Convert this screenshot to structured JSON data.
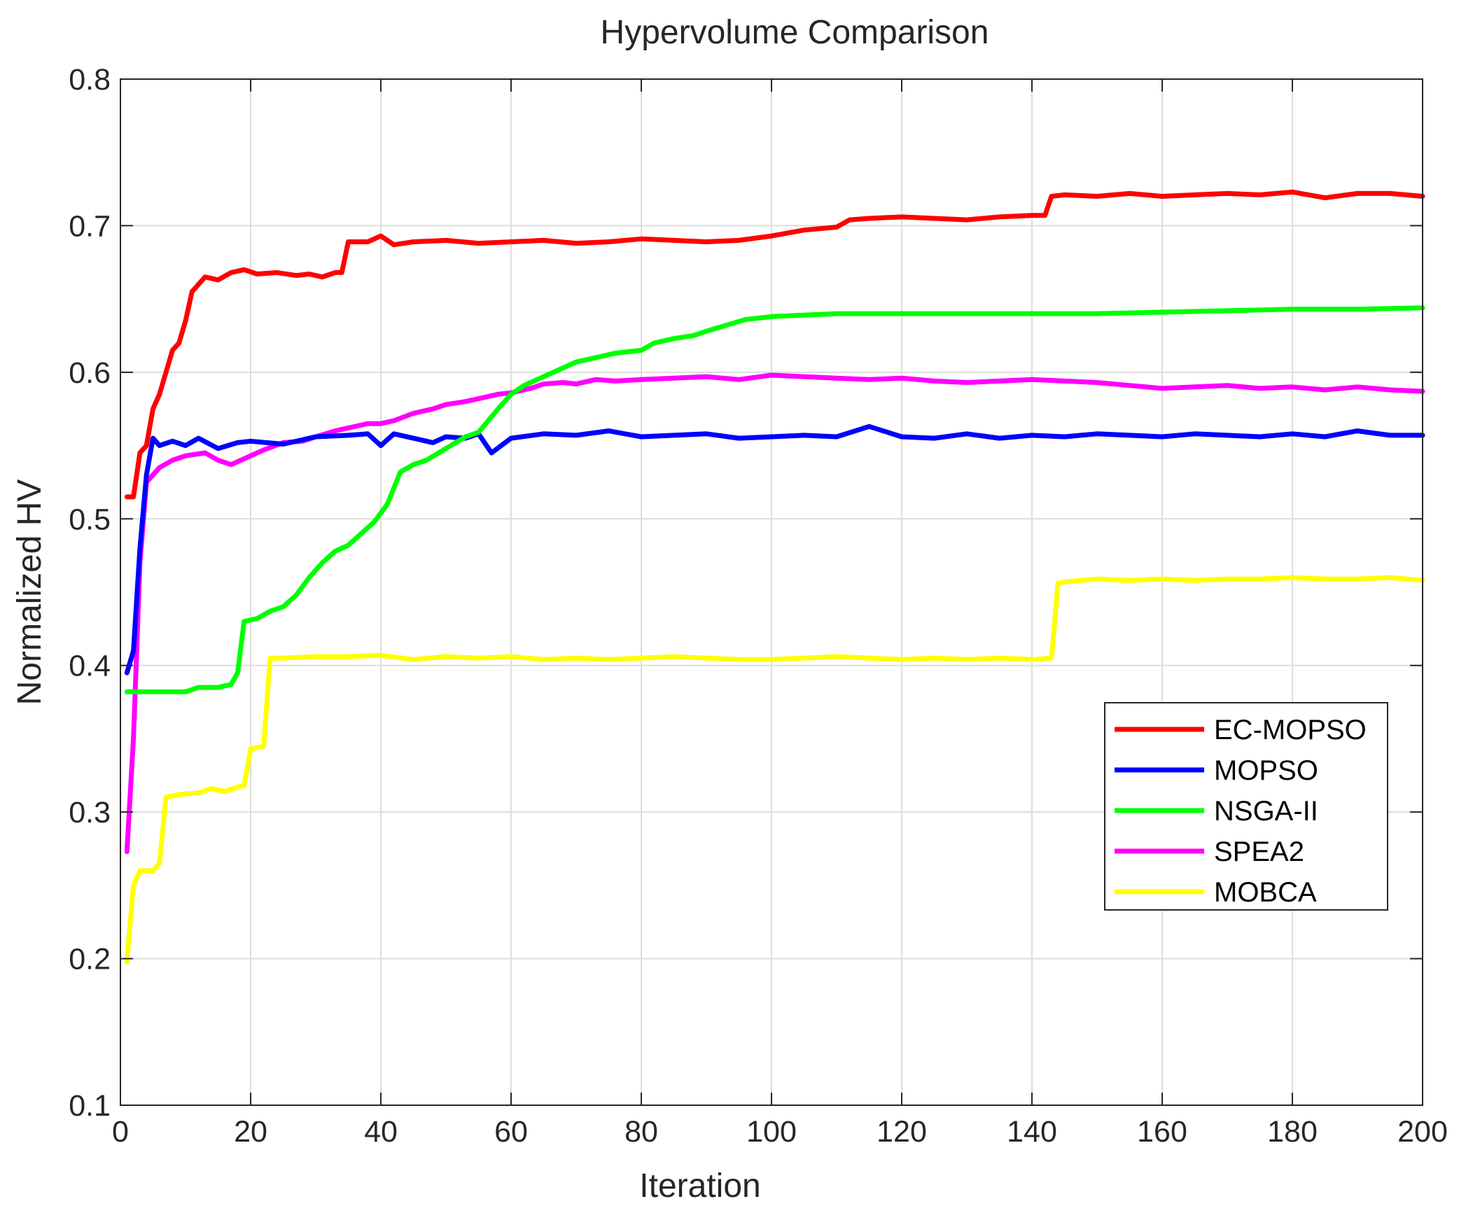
{
  "chart_data": {
    "type": "line",
    "title": "Hypervolume Comparison",
    "xlabel": "Iteration",
    "ylabel": "Normalized HV",
    "xlim": [
      0,
      200
    ],
    "ylim": [
      0.1,
      0.8
    ],
    "xticks": [
      0,
      20,
      40,
      60,
      80,
      100,
      120,
      140,
      160,
      180,
      200
    ],
    "yticks": [
      0.1,
      0.2,
      0.3,
      0.4,
      0.5,
      0.6,
      0.7,
      0.8
    ],
    "xtick_labels": [
      "0",
      "20",
      "40",
      "60",
      "80",
      "100",
      "120",
      "140",
      "160",
      "180",
      "200"
    ],
    "ytick_labels": [
      "0.1",
      "0.2",
      "0.3",
      "0.4",
      "0.5",
      "0.6",
      "0.7",
      "0.8"
    ],
    "grid": true,
    "legend_position": "lower-right",
    "series": [
      {
        "name": "EC-MOPSO",
        "color": "#ff0000",
        "points": [
          [
            1,
            0.515
          ],
          [
            2,
            0.515
          ],
          [
            3,
            0.545
          ],
          [
            4,
            0.55
          ],
          [
            5,
            0.575
          ],
          [
            6,
            0.585
          ],
          [
            7,
            0.6
          ],
          [
            8,
            0.615
          ],
          [
            9,
            0.62
          ],
          [
            10,
            0.635
          ],
          [
            11,
            0.655
          ],
          [
            12,
            0.66
          ],
          [
            13,
            0.665
          ],
          [
            15,
            0.663
          ],
          [
            17,
            0.668
          ],
          [
            19,
            0.67
          ],
          [
            21,
            0.667
          ],
          [
            24,
            0.668
          ],
          [
            27,
            0.666
          ],
          [
            29,
            0.667
          ],
          [
            31,
            0.665
          ],
          [
            33,
            0.668
          ],
          [
            34,
            0.668
          ],
          [
            35,
            0.689
          ],
          [
            38,
            0.689
          ],
          [
            40,
            0.693
          ],
          [
            42,
            0.687
          ],
          [
            45,
            0.689
          ],
          [
            50,
            0.69
          ],
          [
            55,
            0.688
          ],
          [
            60,
            0.689
          ],
          [
            65,
            0.69
          ],
          [
            70,
            0.688
          ],
          [
            75,
            0.689
          ],
          [
            80,
            0.691
          ],
          [
            85,
            0.69
          ],
          [
            90,
            0.689
          ],
          [
            95,
            0.69
          ],
          [
            100,
            0.693
          ],
          [
            105,
            0.697
          ],
          [
            110,
            0.699
          ],
          [
            112,
            0.704
          ],
          [
            115,
            0.705
          ],
          [
            120,
            0.706
          ],
          [
            125,
            0.705
          ],
          [
            130,
            0.704
          ],
          [
            135,
            0.706
          ],
          [
            140,
            0.707
          ],
          [
            142,
            0.707
          ],
          [
            143,
            0.72
          ],
          [
            145,
            0.721
          ],
          [
            150,
            0.72
          ],
          [
            155,
            0.722
          ],
          [
            160,
            0.72
          ],
          [
            165,
            0.721
          ],
          [
            170,
            0.722
          ],
          [
            175,
            0.721
          ],
          [
            180,
            0.723
          ],
          [
            185,
            0.719
          ],
          [
            190,
            0.722
          ],
          [
            195,
            0.722
          ],
          [
            200,
            0.72
          ]
        ]
      },
      {
        "name": "MOPSO",
        "color": "#0000ff",
        "points": [
          [
            1,
            0.395
          ],
          [
            2,
            0.41
          ],
          [
            3,
            0.48
          ],
          [
            4,
            0.53
          ],
          [
            5,
            0.555
          ],
          [
            6,
            0.55
          ],
          [
            8,
            0.553
          ],
          [
            10,
            0.55
          ],
          [
            12,
            0.555
          ],
          [
            15,
            0.548
          ],
          [
            18,
            0.552
          ],
          [
            20,
            0.553
          ],
          [
            25,
            0.551
          ],
          [
            30,
            0.556
          ],
          [
            35,
            0.557
          ],
          [
            38,
            0.558
          ],
          [
            40,
            0.55
          ],
          [
            42,
            0.558
          ],
          [
            45,
            0.555
          ],
          [
            48,
            0.552
          ],
          [
            50,
            0.556
          ],
          [
            53,
            0.555
          ],
          [
            55,
            0.558
          ],
          [
            57,
            0.545
          ],
          [
            60,
            0.555
          ],
          [
            65,
            0.558
          ],
          [
            70,
            0.557
          ],
          [
            75,
            0.56
          ],
          [
            80,
            0.556
          ],
          [
            85,
            0.557
          ],
          [
            90,
            0.558
          ],
          [
            95,
            0.555
          ],
          [
            100,
            0.556
          ],
          [
            105,
            0.557
          ],
          [
            110,
            0.556
          ],
          [
            115,
            0.563
          ],
          [
            120,
            0.556
          ],
          [
            125,
            0.555
          ],
          [
            130,
            0.558
          ],
          [
            135,
            0.555
          ],
          [
            140,
            0.557
          ],
          [
            145,
            0.556
          ],
          [
            150,
            0.558
          ],
          [
            155,
            0.557
          ],
          [
            160,
            0.556
          ],
          [
            165,
            0.558
          ],
          [
            170,
            0.557
          ],
          [
            175,
            0.556
          ],
          [
            180,
            0.558
          ],
          [
            185,
            0.556
          ],
          [
            190,
            0.56
          ],
          [
            195,
            0.557
          ],
          [
            200,
            0.557
          ]
        ]
      },
      {
        "name": "NSGA-II",
        "color": "#00ff00",
        "points": [
          [
            1,
            0.382
          ],
          [
            5,
            0.382
          ],
          [
            10,
            0.382
          ],
          [
            12,
            0.385
          ],
          [
            15,
            0.385
          ],
          [
            17,
            0.387
          ],
          [
            18,
            0.395
          ],
          [
            19,
            0.43
          ],
          [
            21,
            0.432
          ],
          [
            23,
            0.437
          ],
          [
            25,
            0.44
          ],
          [
            27,
            0.448
          ],
          [
            29,
            0.46
          ],
          [
            31,
            0.47
          ],
          [
            33,
            0.478
          ],
          [
            35,
            0.482
          ],
          [
            37,
            0.49
          ],
          [
            39,
            0.498
          ],
          [
            41,
            0.51
          ],
          [
            43,
            0.532
          ],
          [
            45,
            0.537
          ],
          [
            47,
            0.54
          ],
          [
            50,
            0.548
          ],
          [
            53,
            0.556
          ],
          [
            55,
            0.559
          ],
          [
            58,
            0.575
          ],
          [
            60,
            0.585
          ],
          [
            62,
            0.591
          ],
          [
            65,
            0.597
          ],
          [
            68,
            0.603
          ],
          [
            70,
            0.607
          ],
          [
            73,
            0.61
          ],
          [
            76,
            0.613
          ],
          [
            80,
            0.615
          ],
          [
            82,
            0.62
          ],
          [
            85,
            0.623
          ],
          [
            88,
            0.625
          ],
          [
            90,
            0.628
          ],
          [
            93,
            0.632
          ],
          [
            96,
            0.636
          ],
          [
            100,
            0.638
          ],
          [
            105,
            0.639
          ],
          [
            110,
            0.64
          ],
          [
            120,
            0.64
          ],
          [
            130,
            0.64
          ],
          [
            140,
            0.64
          ],
          [
            150,
            0.64
          ],
          [
            160,
            0.641
          ],
          [
            170,
            0.642
          ],
          [
            180,
            0.643
          ],
          [
            190,
            0.643
          ],
          [
            200,
            0.644
          ]
        ]
      },
      {
        "name": "SPEA2",
        "color": "#ff00ff",
        "points": [
          [
            1,
            0.273
          ],
          [
            2,
            0.35
          ],
          [
            3,
            0.47
          ],
          [
            4,
            0.525
          ],
          [
            5,
            0.53
          ],
          [
            6,
            0.535
          ],
          [
            8,
            0.54
          ],
          [
            10,
            0.543
          ],
          [
            13,
            0.545
          ],
          [
            15,
            0.54
          ],
          [
            17,
            0.537
          ],
          [
            20,
            0.543
          ],
          [
            22,
            0.547
          ],
          [
            25,
            0.552
          ],
          [
            28,
            0.553
          ],
          [
            30,
            0.556
          ],
          [
            33,
            0.56
          ],
          [
            35,
            0.562
          ],
          [
            38,
            0.565
          ],
          [
            40,
            0.565
          ],
          [
            42,
            0.567
          ],
          [
            45,
            0.572
          ],
          [
            48,
            0.575
          ],
          [
            50,
            0.578
          ],
          [
            53,
            0.58
          ],
          [
            55,
            0.582
          ],
          [
            58,
            0.585
          ],
          [
            60,
            0.586
          ],
          [
            63,
            0.589
          ],
          [
            65,
            0.592
          ],
          [
            68,
            0.593
          ],
          [
            70,
            0.592
          ],
          [
            73,
            0.595
          ],
          [
            76,
            0.594
          ],
          [
            80,
            0.595
          ],
          [
            85,
            0.596
          ],
          [
            90,
            0.597
          ],
          [
            95,
            0.595
          ],
          [
            100,
            0.598
          ],
          [
            105,
            0.597
          ],
          [
            110,
            0.596
          ],
          [
            115,
            0.595
          ],
          [
            120,
            0.596
          ],
          [
            125,
            0.594
          ],
          [
            130,
            0.593
          ],
          [
            135,
            0.594
          ],
          [
            140,
            0.595
          ],
          [
            145,
            0.594
          ],
          [
            150,
            0.593
          ],
          [
            155,
            0.591
          ],
          [
            160,
            0.589
          ],
          [
            165,
            0.59
          ],
          [
            170,
            0.591
          ],
          [
            175,
            0.589
          ],
          [
            180,
            0.59
          ],
          [
            185,
            0.588
          ],
          [
            190,
            0.59
          ],
          [
            195,
            0.588
          ],
          [
            200,
            0.587
          ]
        ]
      },
      {
        "name": "MOBCA",
        "color": "#ffff00",
        "points": [
          [
            1,
            0.198
          ],
          [
            2,
            0.25
          ],
          [
            3,
            0.26
          ],
          [
            5,
            0.26
          ],
          [
            6,
            0.265
          ],
          [
            7,
            0.31
          ],
          [
            9,
            0.312
          ],
          [
            12,
            0.313
          ],
          [
            14,
            0.316
          ],
          [
            16,
            0.314
          ],
          [
            18,
            0.317
          ],
          [
            19,
            0.318
          ],
          [
            20,
            0.343
          ],
          [
            22,
            0.345
          ],
          [
            23,
            0.405
          ],
          [
            25,
            0.405
          ],
          [
            30,
            0.406
          ],
          [
            35,
            0.406
          ],
          [
            40,
            0.407
          ],
          [
            45,
            0.404
          ],
          [
            50,
            0.406
          ],
          [
            55,
            0.405
          ],
          [
            60,
            0.406
          ],
          [
            65,
            0.404
          ],
          [
            70,
            0.405
          ],
          [
            75,
            0.404
          ],
          [
            80,
            0.405
          ],
          [
            85,
            0.406
          ],
          [
            90,
            0.405
          ],
          [
            95,
            0.404
          ],
          [
            100,
            0.404
          ],
          [
            105,
            0.405
          ],
          [
            110,
            0.406
          ],
          [
            115,
            0.405
          ],
          [
            120,
            0.404
          ],
          [
            125,
            0.405
          ],
          [
            130,
            0.404
          ],
          [
            135,
            0.405
          ],
          [
            140,
            0.404
          ],
          [
            143,
            0.405
          ],
          [
            144,
            0.456
          ],
          [
            145,
            0.457
          ],
          [
            150,
            0.459
          ],
          [
            155,
            0.458
          ],
          [
            160,
            0.459
          ],
          [
            165,
            0.458
          ],
          [
            170,
            0.459
          ],
          [
            175,
            0.459
          ],
          [
            180,
            0.46
          ],
          [
            185,
            0.459
          ],
          [
            190,
            0.459
          ],
          [
            195,
            0.46
          ],
          [
            200,
            0.458
          ]
        ]
      }
    ]
  }
}
